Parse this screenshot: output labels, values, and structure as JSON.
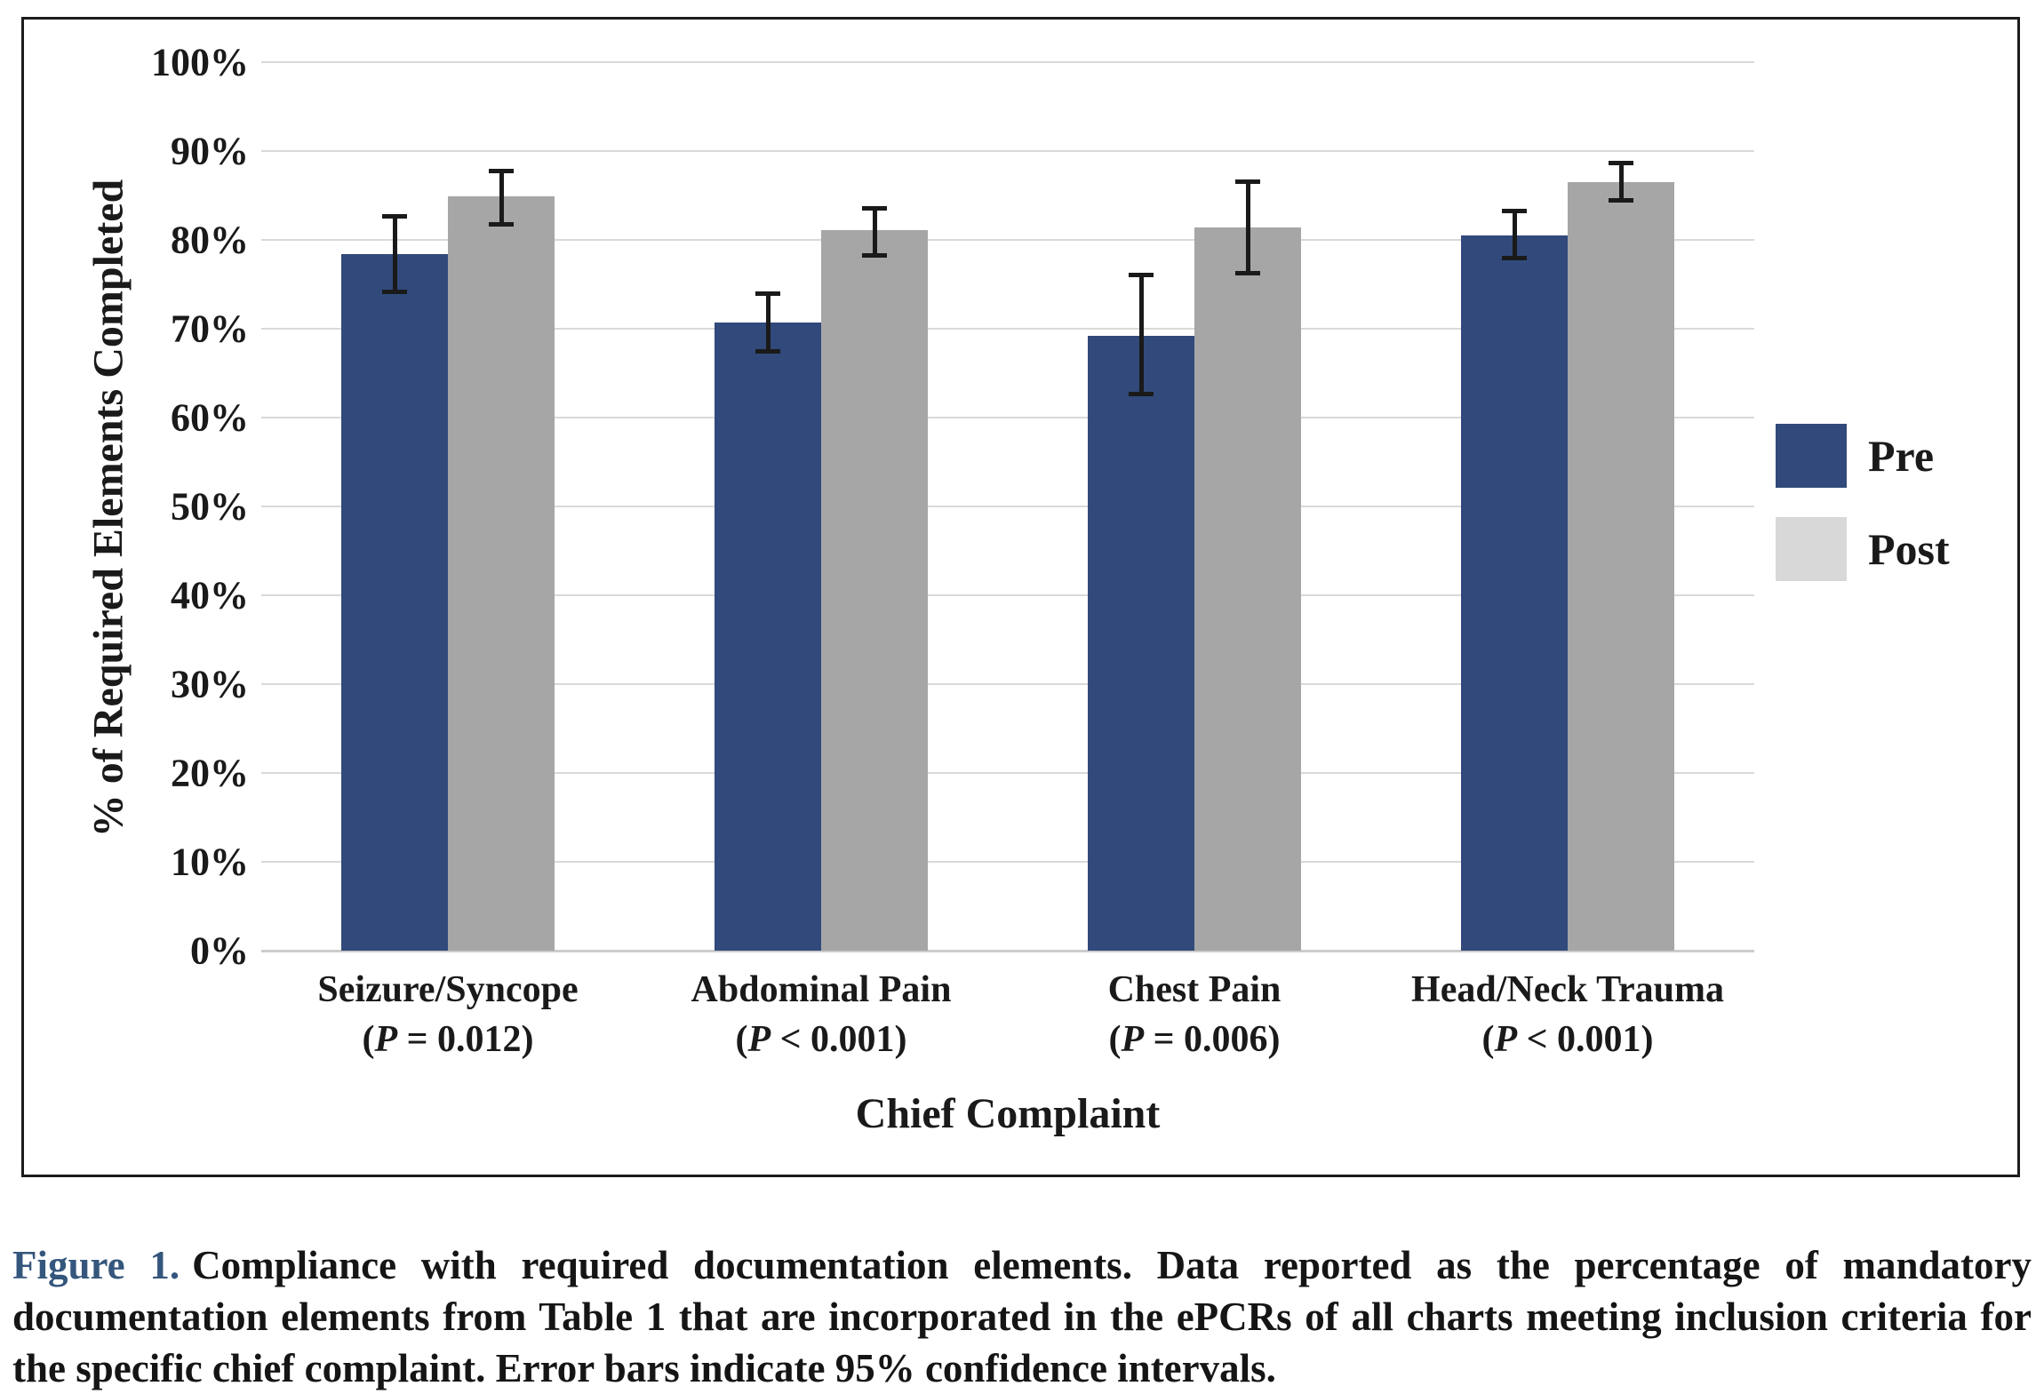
{
  "figure": {
    "caption": {
      "label": "Figure 1.",
      "label_color": "#35567d",
      "text": "Compliance with required documentation elements. Data reported as the percentage of mandatory documentation elements from Table 1 that are incorporated in the ePCRs of all charts meeting inclusion criteria for the specific chief complaint. Error bars indicate 95% confidence intervals."
    }
  },
  "chart_data": {
    "type": "bar",
    "title": "",
    "xlabel": "Chief Complaint",
    "ylabel": "% of Required Elements Completed",
    "ylim": [
      0,
      100
    ],
    "ytick_step": 10,
    "yticks": [
      "0%",
      "10%",
      "20%",
      "30%",
      "40%",
      "50%",
      "60%",
      "70%",
      "80%",
      "90%",
      "100%"
    ],
    "grid": true,
    "gridline_color": "#d9d9d9",
    "legend_position": "right-middle",
    "error_bar_meaning": "95% confidence intervals",
    "error_bar_color": "#1a1a1a",
    "categories": [
      "Seizure/Syncope",
      "Abdominal Pain",
      "Chest Pain",
      "Head/Neck Trauma"
    ],
    "p_labels": [
      "(P = 0.012)",
      "(P < 0.001)",
      "(P = 0.006)",
      "(P < 0.001)"
    ],
    "series": [
      {
        "name": "Pre",
        "color": "#314a7b",
        "legend_color": "#314a7b",
        "values": [
          78.4,
          70.7,
          69.2,
          80.5
        ],
        "ci_low": [
          74.2,
          67.5,
          62.7,
          78.0
        ],
        "ci_high": [
          82.7,
          74.0,
          76.1,
          83.3
        ]
      },
      {
        "name": "Post",
        "color": "#a6a6a6",
        "legend_color": "#d8d8d8",
        "values": [
          84.9,
          81.1,
          81.4,
          86.5
        ],
        "ci_low": [
          81.8,
          78.3,
          76.3,
          84.5
        ],
        "ci_high": [
          87.8,
          83.6,
          86.6,
          88.7
        ]
      }
    ]
  }
}
